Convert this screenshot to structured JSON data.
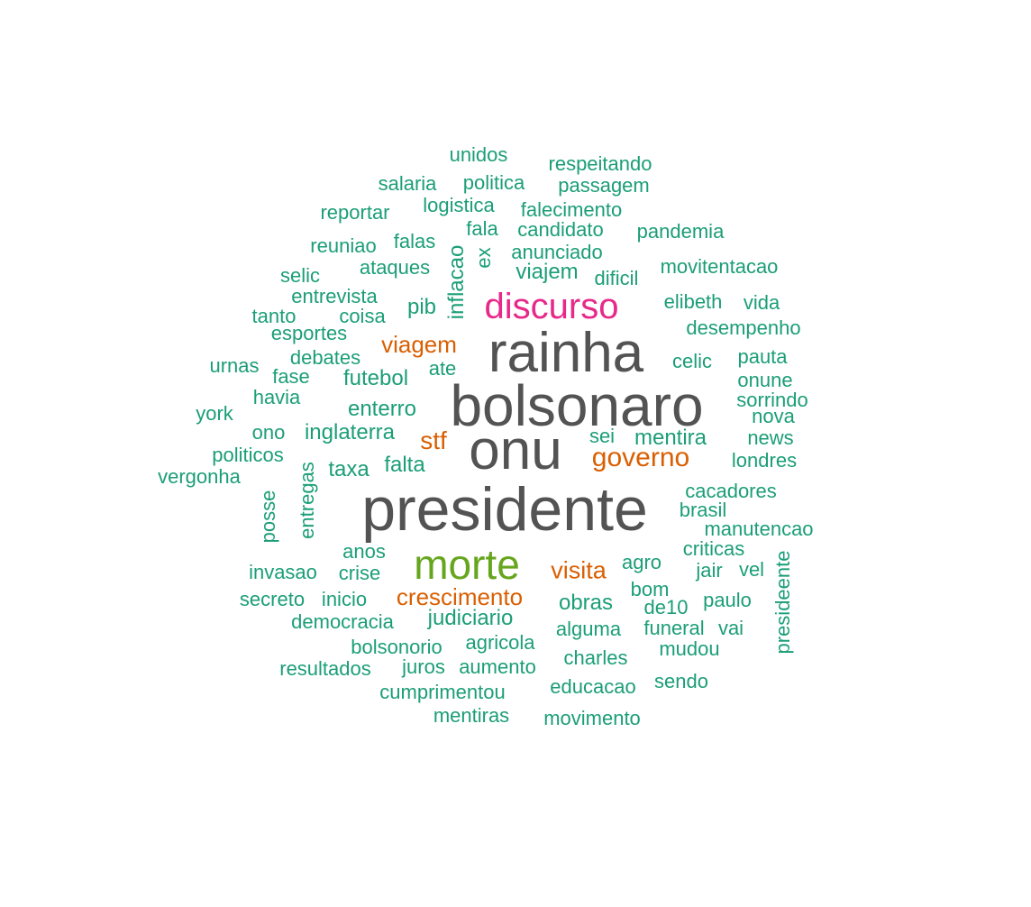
{
  "colors": {
    "t1": "#1b9e77",
    "t2": "#d95f02",
    "t3": "#e7298a",
    "t4": "#66a61e",
    "t5": "#535353"
  },
  "words": [
    "presidente",
    "bolsonaro",
    "onu",
    "rainha",
    "morte",
    "discurso",
    "governo",
    "viagem",
    "stf",
    "visita",
    "crescimento",
    "unidos",
    "respeitando",
    "salaria",
    "politica",
    "passagem",
    "reportar",
    "logistica",
    "falecimento",
    "fala",
    "candidato",
    "pandemia",
    "reuniao",
    "falas",
    "anunciado",
    "ex",
    "inflacao",
    "ataques",
    "movitentacao",
    "selic",
    "viajem",
    "dificil",
    "entrevista",
    "elibeth",
    "vida",
    "tanto",
    "coisa",
    "pib",
    "desempenho",
    "esportes",
    "debates",
    "pauta",
    "urnas",
    "ate",
    "celic",
    "fase",
    "futebol",
    "onune",
    "havia",
    "sorrindo",
    "york",
    "enterro",
    "nova",
    "ono",
    "inglaterra",
    "sei",
    "mentira",
    "news",
    "politicos",
    "londres",
    "vergonha",
    "taxa",
    "falta",
    "cacadores",
    "posse",
    "entregas",
    "brasil",
    "manutencao",
    "anos",
    "criticas",
    "agro",
    "invasao",
    "crise",
    "jair",
    "vel",
    "presideente",
    "bom",
    "secreto",
    "inicio",
    "obras",
    "paulo",
    "de10",
    "democracia",
    "judiciario",
    "alguma",
    "funeral",
    "vai",
    "bolsonorio",
    "agricola",
    "mudou",
    "resultados",
    "juros",
    "aumento",
    "charles",
    "sendo",
    "cumprimentou",
    "educacao",
    "mentiras",
    "movimento"
  ]
}
